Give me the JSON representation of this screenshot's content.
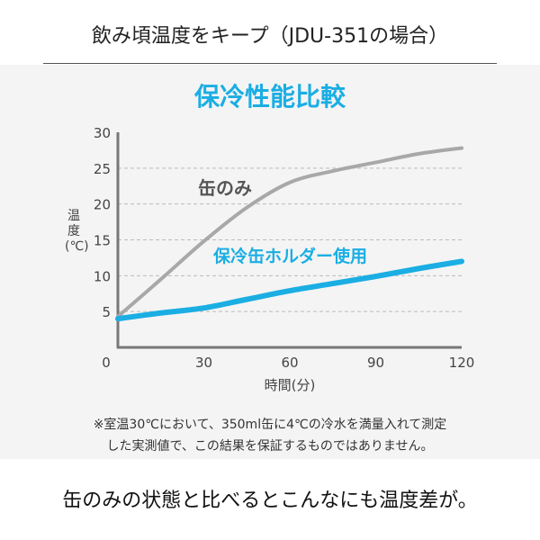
{
  "header": {
    "title": "飲み頃温度をキープ（JDU-351の場合）"
  },
  "chart_data": {
    "type": "line",
    "title": "保冷性能比較",
    "xlabel": "時間(分)",
    "ylabel": "温度(℃)",
    "xlim": [
      0,
      120
    ],
    "ylim": [
      0,
      30
    ],
    "xticks": [
      "0",
      "30",
      "60",
      "90",
      "120"
    ],
    "yticks": [
      "5",
      "10",
      "15",
      "20",
      "25",
      "30"
    ],
    "grid": "horizontal dashed",
    "x": [
      0,
      15,
      30,
      45,
      60,
      75,
      90,
      105,
      120
    ],
    "series": [
      {
        "name": "缶のみ",
        "color": "#a8a8a8",
        "values": [
          4.3,
          9.5,
          14.8,
          19.5,
          23.0,
          24.6,
          25.8,
          27.0,
          27.8
        ]
      },
      {
        "name": "保冷缶ホルダー使用",
        "color": "#1aaee3",
        "values": [
          4.0,
          4.8,
          5.5,
          6.7,
          7.9,
          8.9,
          9.9,
          11.0,
          12.0
        ]
      }
    ]
  },
  "note": {
    "line1": "※室温30℃において、350ml缶に4℃の冷水を満量入れて測定",
    "line2": "した実測値で、この結果を保証するものではありません。"
  },
  "footer": {
    "caption": "缶のみの状態と比べるとこんなにも温度差が。"
  }
}
